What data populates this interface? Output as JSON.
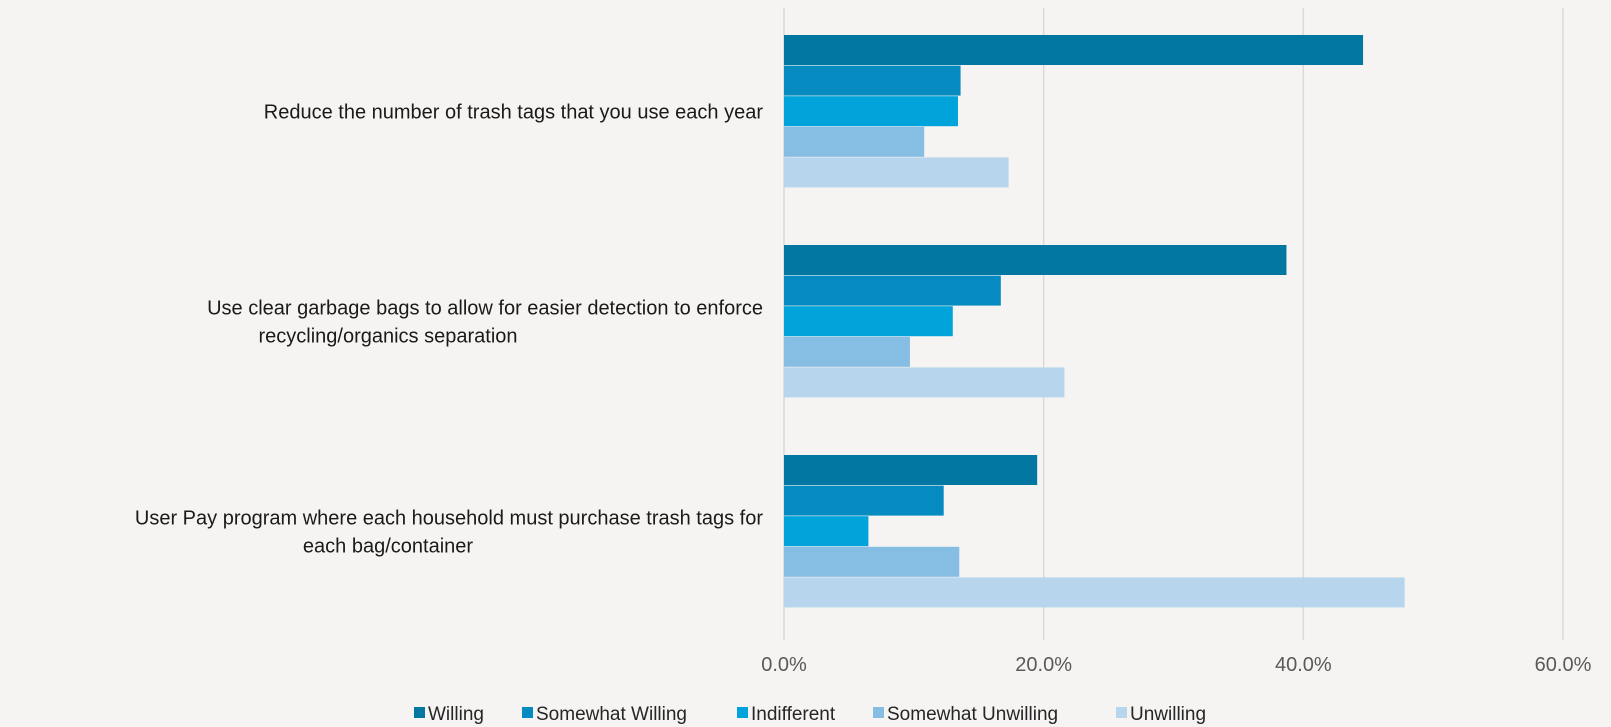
{
  "chart_data": {
    "type": "bar",
    "orientation": "horizontal",
    "categories": [
      [
        "Reduce the number of trash tags that you use each year"
      ],
      [
        "Use clear garbage bags to allow for easier detection to enforce",
        "recycling/organics separation"
      ],
      [
        "User Pay program where each household must purchase trash tags for",
        "each bag/container"
      ]
    ],
    "series": [
      {
        "name": "Willing",
        "color": "#0277a1",
        "values": [
          44.6,
          38.7,
          19.5
        ]
      },
      {
        "name": "Somewhat Willing",
        "color": "#058bbf",
        "values": [
          13.6,
          16.7,
          12.3
        ]
      },
      {
        "name": "Indifferent",
        "color": "#00a3da",
        "values": [
          13.4,
          13.0,
          6.5
        ]
      },
      {
        "name": "Somewhat Unwilling",
        "color": "#86bde3",
        "values": [
          10.8,
          9.7,
          13.5
        ]
      },
      {
        "name": "Unwilling",
        "color": "#b7d5ec",
        "values": [
          17.3,
          21.6,
          47.8
        ]
      }
    ],
    "xlim": [
      0,
      60
    ],
    "x_ticks": [
      "0.0%",
      "20.0%",
      "40.0%",
      "60.0%"
    ],
    "x_tick_values": [
      0,
      20,
      40,
      60
    ],
    "grid": true,
    "legend_position": "bottom",
    "title": "",
    "xlabel": "",
    "ylabel": ""
  }
}
